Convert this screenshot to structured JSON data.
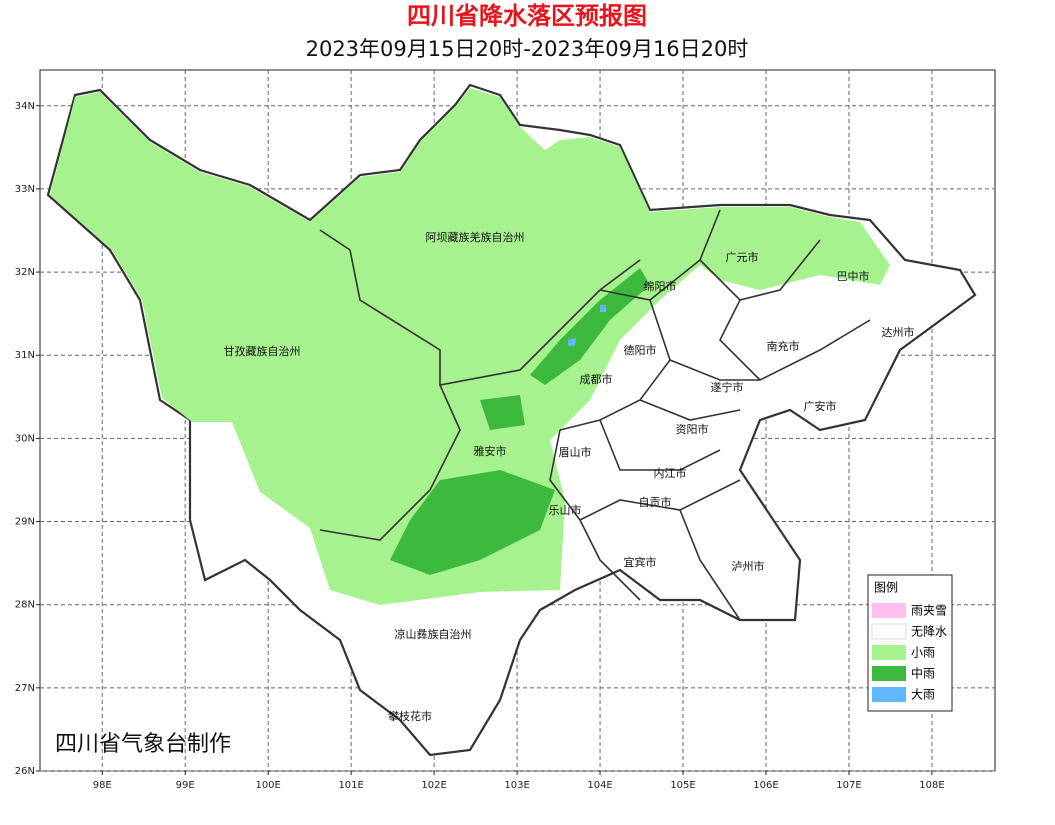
{
  "title": "四川省降水落区预报图",
  "subtitle": "2023年09月15日20时-2023年09月16日20时",
  "credit": "四川省气象台制作",
  "map": {
    "xlim": [
      97.25,
      108.76
    ],
    "ylim": [
      26,
      34.43
    ],
    "xticks": [
      {
        "value": 98,
        "label": "98E"
      },
      {
        "value": 99,
        "label": "99E"
      },
      {
        "value": 100,
        "label": "100E"
      },
      {
        "value": 101,
        "label": "101E"
      },
      {
        "value": 102,
        "label": "102E"
      },
      {
        "value": 103,
        "label": "103E"
      },
      {
        "value": 104,
        "label": "104E"
      },
      {
        "value": 105,
        "label": "105E"
      },
      {
        "value": 106,
        "label": "106E"
      },
      {
        "value": 107,
        "label": "107E"
      },
      {
        "value": 108,
        "label": "108E"
      }
    ],
    "yticks": [
      {
        "value": 26,
        "label": "26N"
      },
      {
        "value": 27,
        "label": "27N"
      },
      {
        "value": 28,
        "label": "28N"
      },
      {
        "value": 29,
        "label": "29N"
      },
      {
        "value": 30,
        "label": "30N"
      },
      {
        "value": 31,
        "label": "31N"
      },
      {
        "value": 32,
        "label": "32N"
      },
      {
        "value": 33,
        "label": "33N"
      },
      {
        "value": 34,
        "label": "34N"
      }
    ],
    "grid": true,
    "regions": [
      "阿坝藏族羌族自治州",
      "甘孜藏族自治州",
      "绵阳市",
      "广元市",
      "巴中市",
      "达州市",
      "南充市",
      "德阳市",
      "成都市",
      "遂宁市",
      "广安市",
      "资阳市",
      "雅安市",
      "眉山市",
      "内江市",
      "自贡市",
      "乐山市",
      "宜宾市",
      "泸州市",
      "凉山彝族自治州",
      "攀枝花市"
    ]
  },
  "legend": {
    "title": "图例",
    "items": [
      {
        "name": "雨夹雪",
        "color": "#ffc0ee"
      },
      {
        "name": "无降水",
        "color": "#ffffff"
      },
      {
        "name": "小雨",
        "color": "#a6f28f"
      },
      {
        "name": "中雨",
        "color": "#3dba3d"
      },
      {
        "name": "大雨",
        "color": "#61b8ff"
      }
    ]
  }
}
